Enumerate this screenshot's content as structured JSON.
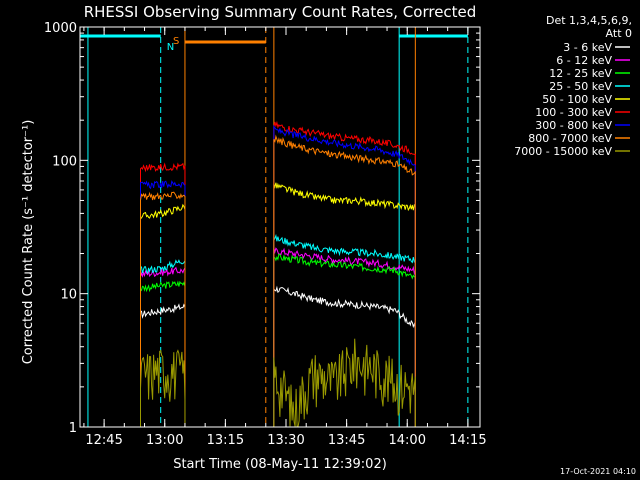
{
  "chart_data": {
    "type": "line",
    "title": "RHESSI Observing Summary Count Rates, Corrected",
    "xlabel": "Start Time (08-May-11 12:39:02)",
    "ylabel": "Corrected Count Rate (s⁻¹ detector⁻¹)",
    "yscale": "log",
    "xlim": [
      "12:39",
      "14:18"
    ],
    "ylim": [
      1,
      1000
    ],
    "x_ticks": [
      "12:45",
      "13:00",
      "13:15",
      "13:30",
      "13:45",
      "14:00",
      "14:15"
    ],
    "y_ticks": [
      {
        "value": 1,
        "label": "1"
      },
      {
        "value": 10,
        "label": "10"
      },
      {
        "value": 100,
        "label": "100"
      },
      {
        "value": 1000,
        "label": "1000"
      }
    ],
    "legend_header": [
      "Det 1,3,4,5,6,9,",
      "Att 0"
    ],
    "legend_position": "right",
    "footer": "17-Oct-2021 04:10",
    "segments": [
      {
        "start": "12:54",
        "end": "13:05"
      },
      {
        "start": "13:27",
        "end": "14:02"
      }
    ],
    "series": [
      {
        "name": "3 - 6 keV",
        "color": "#ffffff",
        "values": [
          [
            7,
            7.5,
            8
          ],
          [
            11,
            10,
            9,
            8.5,
            8.3,
            8,
            7.5,
            5.5
          ]
        ]
      },
      {
        "name": "6 - 12 keV",
        "color": "#ff00ff",
        "values": [
          [
            14,
            14.5,
            15
          ],
          [
            21,
            20,
            19,
            18,
            17.5,
            17,
            16,
            15
          ]
        ]
      },
      {
        "name": "12 - 25 keV",
        "color": "#00ff00",
        "values": [
          [
            11,
            11.5,
            12
          ],
          [
            19,
            18,
            17,
            16.5,
            16,
            15.5,
            15,
            13
          ]
        ]
      },
      {
        "name": "25 - 50 keV",
        "color": "#00ffff",
        "values": [
          [
            15,
            15.5,
            18
          ],
          [
            26,
            24,
            22,
            21,
            20.5,
            20,
            19,
            18
          ]
        ]
      },
      {
        "name": "50 - 100 keV",
        "color": "#ffff00",
        "values": [
          [
            38,
            40,
            45
          ],
          [
            65,
            58,
            53,
            50,
            50,
            48,
            46,
            44
          ]
        ]
      },
      {
        "name": "100 - 300 keV",
        "color": "#ff0000",
        "values": [
          [
            88,
            89,
            90
          ],
          [
            185,
            170,
            160,
            150,
            145,
            140,
            130,
            115
          ]
        ]
      },
      {
        "name": "300 - 800 keV",
        "color": "#0000ff",
        "values": [
          [
            65,
            66,
            67
          ],
          [
            170,
            155,
            145,
            135,
            128,
            122,
            112,
            95
          ]
        ]
      },
      {
        "name": "800 - 7000 keV",
        "color": "#ff8000",
        "values": [
          [
            53,
            54,
            55
          ],
          [
            145,
            128,
            118,
            110,
            105,
            100,
            95,
            78
          ]
        ]
      },
      {
        "name": "7000 - 15000 keV",
        "color": "#999900",
        "values": [
          [
            2.5,
            2.8,
            2.6
          ],
          [
            2.5,
            1.3,
            2.6,
            2.2,
            3.2,
            2.8,
            2.2,
            2.0
          ]
        ]
      }
    ],
    "annotations": [
      {
        "label": "N",
        "color": "#00ffff",
        "spans": [
          [
            "12:39",
            "12:59"
          ],
          [
            "13:58",
            "14:15"
          ]
        ],
        "markers": [
          "12:41",
          "12:59",
          "13:58",
          "14:15"
        ],
        "dashed": [
          false,
          true,
          false,
          true
        ]
      },
      {
        "label": "S",
        "color": "#ff8000",
        "spans": [
          [
            "13:05",
            "13:25"
          ]
        ],
        "markers": [
          "13:05",
          "13:25",
          "13:27",
          "14:02"
        ],
        "dashed": [
          false,
          true,
          false,
          false
        ]
      }
    ]
  }
}
